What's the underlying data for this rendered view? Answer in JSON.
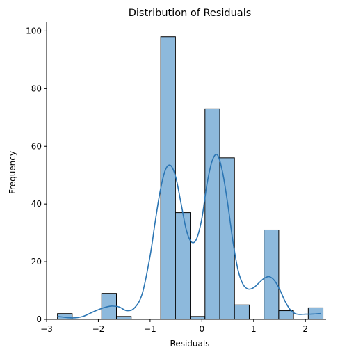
{
  "chart_data": {
    "type": "bar",
    "title": "Distribution of Residuals",
    "xlabel": "Residuals",
    "ylabel": "Frequency",
    "xlim": [
      -3.0,
      2.4
    ],
    "ylim": [
      0,
      103
    ],
    "xticks": [
      -3,
      -2,
      -1,
      0,
      1,
      2
    ],
    "xtick_labels": [
      "−3",
      "−2",
      "−1",
      "0",
      "1",
      "2"
    ],
    "yticks": [
      0,
      20,
      40,
      60,
      80,
      100
    ],
    "ytick_labels": [
      "0",
      "20",
      "40",
      "60",
      "80",
      "100"
    ],
    "bin_edges": [
      -2.79,
      -2.505,
      -2.22,
      -1.935,
      -1.65,
      -1.365,
      -1.08,
      -0.795,
      -0.51,
      -0.225,
      0.06,
      0.345,
      0.63,
      0.915,
      1.2,
      1.485,
      1.77,
      2.055,
      2.34
    ],
    "counts": [
      2,
      0,
      0,
      9,
      1,
      0,
      0,
      98,
      37,
      1,
      73,
      56,
      5,
      0,
      31,
      3,
      0,
      4
    ],
    "kde": {
      "x": [
        -2.79,
        -2.5,
        -2.3,
        -2.1,
        -1.9,
        -1.75,
        -1.6,
        -1.45,
        -1.3,
        -1.15,
        -1.0,
        -0.9,
        -0.8,
        -0.7,
        -0.6,
        -0.5,
        -0.4,
        -0.3,
        -0.2,
        -0.1,
        0.0,
        0.1,
        0.2,
        0.3,
        0.4,
        0.5,
        0.6,
        0.7,
        0.8,
        0.9,
        1.0,
        1.1,
        1.2,
        1.3,
        1.4,
        1.5,
        1.6,
        1.7,
        1.8,
        1.9,
        2.0,
        2.1,
        2.2,
        2.3
      ],
      "y": [
        1.0,
        0.5,
        1.0,
        2.6,
        4.0,
        4.6,
        4.3,
        3.0,
        4.0,
        9.0,
        22.0,
        34.0,
        45.0,
        52.0,
        53.3,
        49.0,
        40.0,
        31.0,
        26.8,
        28.0,
        35.0,
        47.0,
        55.0,
        57.0,
        51.0,
        40.0,
        27.0,
        17.0,
        12.0,
        10.5,
        11.0,
        12.6,
        14.2,
        14.8,
        13.5,
        10.5,
        6.5,
        3.5,
        2.0,
        1.7,
        1.8,
        1.8,
        1.9,
        2.0
      ]
    },
    "grid": false,
    "bar_color": "#8db9dc",
    "bar_edge_color": "#000000",
    "line_color": "#2b75b3"
  }
}
